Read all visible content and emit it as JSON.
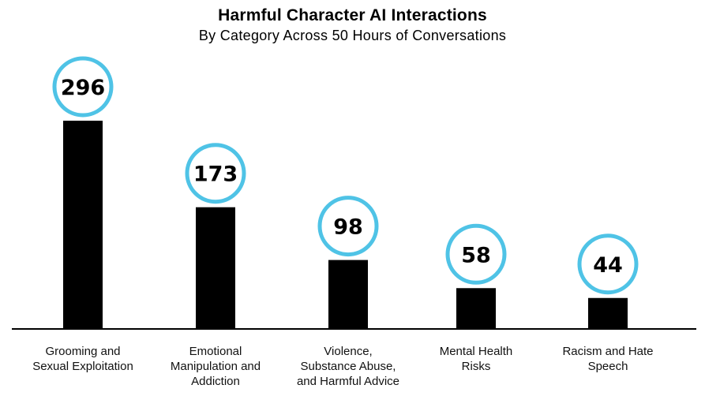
{
  "chart_data": {
    "type": "bar",
    "title": "Harmful Character AI Interactions",
    "subtitle": "By Category Across 50 Hours of Conversations",
    "categories": [
      [
        "Grooming and",
        "Sexual Exploitation"
      ],
      [
        "Emotional",
        "Manipulation and",
        "Addiction"
      ],
      [
        "Violence,",
        "Substance Abuse,",
        "and Harmful Advice"
      ],
      [
        "Mental Health",
        "Risks"
      ],
      [
        "Racism and Hate",
        "Speech"
      ]
    ],
    "values": [
      296,
      173,
      98,
      58,
      44
    ],
    "xlabel": "",
    "ylabel": "",
    "ylim": [
      0,
      296
    ],
    "grid": false,
    "colors": {
      "bar": "#000000",
      "circle": "#4fc3e6",
      "axis": "#000000"
    }
  }
}
